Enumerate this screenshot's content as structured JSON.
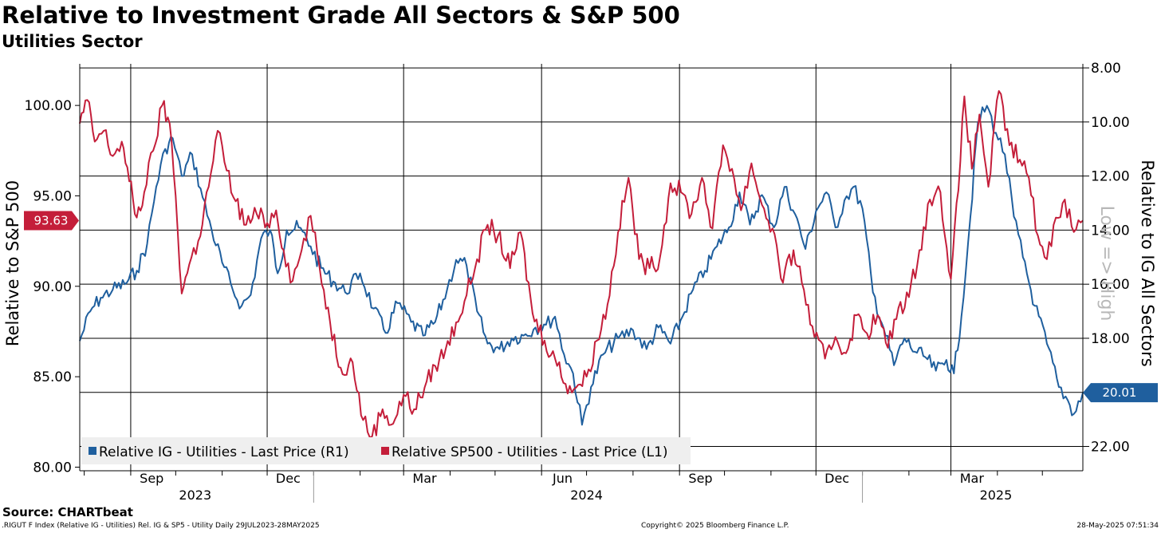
{
  "header": {
    "title": "Relative to Investment Grade All Sectors & S&P 500",
    "subtitle": "Utilities Sector"
  },
  "footer": {
    "source": "Source: CHARTbeat",
    "ticker_info": ".RIGUT F Index (Relative IG - Utilities) Rel. IG & SP5 - Utility  Daily 29JUL2023-28MAY2025",
    "copyright": "Copyright© 2025 Bloomberg Finance L.P.",
    "timestamp": "28-May-2025 07:51:34"
  },
  "chart_data": {
    "type": "line",
    "title": "Relative to Investment Grade All Sectors & S&P 500",
    "subtitle": "Utilities Sector",
    "x_range": [
      "2023-07-29",
      "2025-05-28"
    ],
    "x_ticks": [
      {
        "label": "Sep",
        "date": "2023-09-15"
      },
      {
        "label": "Dec",
        "date": "2023-12-15"
      },
      {
        "label": "Mar",
        "date": "2024-03-15"
      },
      {
        "label": "Jun",
        "date": "2024-06-15"
      },
      {
        "label": "Sep",
        "date": "2024-09-15"
      },
      {
        "label": "Dec",
        "date": "2024-12-15"
      },
      {
        "label": "Mar",
        "date": "2025-03-15"
      }
    ],
    "x_gridlines": [
      "2023-09-01",
      "2023-12-01",
      "2024-03-01",
      "2024-06-01",
      "2024-09-01",
      "2024-12-01",
      "2025-03-01"
    ],
    "year_labels": [
      {
        "label": "2023",
        "date": "2023-10-14"
      },
      {
        "label": "2024",
        "date": "2024-07-01"
      },
      {
        "label": "2025",
        "date": "2025-03-31"
      }
    ],
    "year_separators": [
      "2024-01-01",
      "2025-01-01"
    ],
    "left_axis": {
      "label": "Relative to S&P 500",
      "range": [
        79.8,
        102.3
      ],
      "ticks": [
        "80.00",
        "85.00",
        "90.00",
        "95.00",
        "100.00"
      ],
      "last_value_label": "93.63",
      "last_value": 93.63
    },
    "right_axis": {
      "label": "Relative to IG All Sectors",
      "inverted": true,
      "range": [
        7.85,
        22.9
      ],
      "ticks": [
        "8.00",
        "10.00",
        "12.00",
        "14.00",
        "16.00",
        "18.00",
        "20.00",
        "22.00"
      ],
      "last_value_label": "20.01",
      "last_value": 20.01,
      "watermark": "Low => High"
    },
    "legend": {
      "placement": "bottom-left",
      "entries": [
        "Relative IG - Utilities - Last Price (R1)",
        "Relative SP500 - Utilities - Last Price (L1)"
      ]
    },
    "colors": {
      "ig": "#1f5f9e",
      "sp500": "#c41e3a",
      "grid": "#000000"
    },
    "series": [
      {
        "name": "Relative IG - Utilities - Last Price (R1)",
        "axis": "right",
        "color": "#1f5f9e",
        "points": [
          [
            "2023-07-29",
            18.1
          ],
          [
            "2023-08-05",
            17.0
          ],
          [
            "2023-08-12",
            16.5
          ],
          [
            "2023-08-20",
            16.2
          ],
          [
            "2023-08-28",
            16.0
          ],
          [
            "2023-09-05",
            15.5
          ],
          [
            "2023-09-12",
            14.5
          ],
          [
            "2023-09-18",
            12.4
          ],
          [
            "2023-09-24",
            11.0
          ],
          [
            "2023-09-29",
            10.6
          ],
          [
            "2023-10-05",
            12.0
          ],
          [
            "2023-10-12",
            11.2
          ],
          [
            "2023-10-19",
            12.8
          ],
          [
            "2023-10-25",
            14.0
          ],
          [
            "2023-11-01",
            15.2
          ],
          [
            "2023-11-08",
            16.2
          ],
          [
            "2023-11-14",
            16.8
          ],
          [
            "2023-11-20",
            16.4
          ],
          [
            "2023-11-27",
            14.3
          ],
          [
            "2023-12-03",
            14.0
          ],
          [
            "2023-12-08",
            15.6
          ],
          [
            "2023-12-14",
            14.0
          ],
          [
            "2023-12-22",
            13.9
          ],
          [
            "2023-12-30",
            14.6
          ],
          [
            "2024-01-06",
            15.4
          ],
          [
            "2024-01-14",
            15.9
          ],
          [
            "2024-01-22",
            16.3
          ],
          [
            "2024-02-01",
            15.6
          ],
          [
            "2024-02-10",
            16.9
          ],
          [
            "2024-02-18",
            17.8
          ],
          [
            "2024-02-26",
            16.7
          ],
          [
            "2024-03-06",
            17.4
          ],
          [
            "2024-03-14",
            17.9
          ],
          [
            "2024-03-22",
            17.4
          ],
          [
            "2024-03-30",
            16.2
          ],
          [
            "2024-04-05",
            15.1
          ],
          [
            "2024-04-12",
            15.3
          ],
          [
            "2024-04-19",
            17.0
          ],
          [
            "2024-04-26",
            18.2
          ],
          [
            "2024-05-04",
            18.4
          ],
          [
            "2024-05-12",
            18.0
          ],
          [
            "2024-05-20",
            17.9
          ],
          [
            "2024-05-28",
            17.6
          ],
          [
            "2024-06-04",
            17.5
          ],
          [
            "2024-06-10",
            17.2
          ],
          [
            "2024-06-16",
            18.6
          ],
          [
            "2024-06-22",
            19.3
          ],
          [
            "2024-06-28",
            21.2
          ],
          [
            "2024-07-04",
            19.8
          ],
          [
            "2024-07-12",
            18.6
          ],
          [
            "2024-07-22",
            18.0
          ],
          [
            "2024-08-01",
            17.7
          ],
          [
            "2024-08-10",
            18.4
          ],
          [
            "2024-08-18",
            17.6
          ],
          [
            "2024-08-26",
            18.2
          ],
          [
            "2024-09-03",
            17.2
          ],
          [
            "2024-09-10",
            16.2
          ],
          [
            "2024-09-18",
            15.5
          ],
          [
            "2024-09-26",
            14.6
          ],
          [
            "2024-10-04",
            13.9
          ],
          [
            "2024-10-11",
            12.6
          ],
          [
            "2024-10-18",
            13.8
          ],
          [
            "2024-10-26",
            12.7
          ],
          [
            "2024-11-03",
            13.9
          ],
          [
            "2024-11-10",
            12.4
          ],
          [
            "2024-11-17",
            13.4
          ],
          [
            "2024-11-24",
            14.7
          ],
          [
            "2024-12-01",
            13.3
          ],
          [
            "2024-12-08",
            12.6
          ],
          [
            "2024-12-14",
            13.9
          ],
          [
            "2024-12-20",
            12.9
          ],
          [
            "2024-12-26",
            12.4
          ],
          [
            "2025-01-01",
            13.2
          ],
          [
            "2025-01-08",
            16.3
          ],
          [
            "2025-01-15",
            17.6
          ],
          [
            "2025-01-22",
            19.0
          ],
          [
            "2025-01-29",
            18.0
          ],
          [
            "2025-02-05",
            18.5
          ],
          [
            "2025-02-12",
            18.7
          ],
          [
            "2025-02-19",
            19.2
          ],
          [
            "2025-02-26",
            18.8
          ],
          [
            "2025-03-03",
            19.3
          ],
          [
            "2025-03-08",
            17.2
          ],
          [
            "2025-03-14",
            13.5
          ],
          [
            "2025-03-19",
            10.0
          ],
          [
            "2025-03-25",
            9.4
          ],
          [
            "2025-03-31",
            10.4
          ],
          [
            "2025-04-06",
            11.2
          ],
          [
            "2025-04-12",
            13.5
          ],
          [
            "2025-04-18",
            15.0
          ],
          [
            "2025-04-26",
            16.8
          ],
          [
            "2025-05-04",
            18.2
          ],
          [
            "2025-05-12",
            19.8
          ],
          [
            "2025-05-18",
            20.3
          ],
          [
            "2025-05-22",
            20.8
          ],
          [
            "2025-05-28",
            20.01
          ]
        ]
      },
      {
        "name": "Relative SP500 - Utilities - Last Price (L1)",
        "axis": "left",
        "color": "#c41e3a",
        "points": [
          [
            "2023-07-29",
            99.0
          ],
          [
            "2023-08-03",
            100.3
          ],
          [
            "2023-08-08",
            98.0
          ],
          [
            "2023-08-14",
            98.6
          ],
          [
            "2023-08-20",
            97.2
          ],
          [
            "2023-08-26",
            98.0
          ],
          [
            "2023-08-31",
            95.8
          ],
          [
            "2023-09-05",
            93.8
          ],
          [
            "2023-09-10",
            95.2
          ],
          [
            "2023-09-16",
            97.5
          ],
          [
            "2023-09-22",
            100.0
          ],
          [
            "2023-09-27",
            99.0
          ],
          [
            "2023-10-01",
            95.0
          ],
          [
            "2023-10-05",
            89.6
          ],
          [
            "2023-10-10",
            91.2
          ],
          [
            "2023-10-16",
            92.5
          ],
          [
            "2023-10-23",
            95.5
          ],
          [
            "2023-10-29",
            98.6
          ],
          [
            "2023-11-04",
            96.4
          ],
          [
            "2023-11-10",
            94.7
          ],
          [
            "2023-11-17",
            93.4
          ],
          [
            "2023-11-24",
            94.0
          ],
          [
            "2023-12-01",
            93.5
          ],
          [
            "2023-12-07",
            94.2
          ],
          [
            "2023-12-12",
            92.0
          ],
          [
            "2023-12-18",
            90.3
          ],
          [
            "2023-12-24",
            92.0
          ],
          [
            "2023-12-30",
            93.9
          ],
          [
            "2024-01-05",
            91.0
          ],
          [
            "2024-01-12",
            88.0
          ],
          [
            "2024-01-19",
            85.5
          ],
          [
            "2024-01-27",
            85.8
          ],
          [
            "2024-02-03",
            82.6
          ],
          [
            "2024-02-09",
            81.7
          ],
          [
            "2024-02-16",
            83.2
          ],
          [
            "2024-02-23",
            82.4
          ],
          [
            "2024-03-01",
            84.0
          ],
          [
            "2024-03-08",
            83.2
          ],
          [
            "2024-03-15",
            84.4
          ],
          [
            "2024-03-22",
            85.6
          ],
          [
            "2024-03-29",
            86.5
          ],
          [
            "2024-04-05",
            88.0
          ],
          [
            "2024-04-12",
            89.5
          ],
          [
            "2024-04-19",
            91.5
          ],
          [
            "2024-04-26",
            93.4
          ],
          [
            "2024-05-03",
            92.8
          ],
          [
            "2024-05-11",
            91.0
          ],
          [
            "2024-05-18",
            93.0
          ],
          [
            "2024-05-26",
            88.5
          ],
          [
            "2024-06-03",
            87.0
          ],
          [
            "2024-06-10",
            86.0
          ],
          [
            "2024-06-17",
            84.6
          ],
          [
            "2024-06-24",
            84.4
          ],
          [
            "2024-07-01",
            85.0
          ],
          [
            "2024-07-08",
            87.0
          ],
          [
            "2024-07-15",
            89.0
          ],
          [
            "2024-07-22",
            93.0
          ],
          [
            "2024-07-29",
            96.0
          ],
          [
            "2024-08-05",
            91.5
          ],
          [
            "2024-08-12",
            91.0
          ],
          [
            "2024-08-19",
            91.6
          ],
          [
            "2024-08-26",
            95.7
          ],
          [
            "2024-09-02",
            95.2
          ],
          [
            "2024-09-09",
            94.0
          ],
          [
            "2024-09-16",
            96.0
          ],
          [
            "2024-09-23",
            93.2
          ],
          [
            "2024-09-30",
            97.8
          ],
          [
            "2024-10-06",
            96.5
          ],
          [
            "2024-10-12",
            94.2
          ],
          [
            "2024-10-19",
            96.8
          ],
          [
            "2024-10-26",
            94.5
          ],
          [
            "2024-11-02",
            93.2
          ],
          [
            "2024-11-09",
            90.2
          ],
          [
            "2024-11-16",
            92.0
          ],
          [
            "2024-11-23",
            89.8
          ],
          [
            "2024-11-30",
            87.2
          ],
          [
            "2024-12-07",
            86.0
          ],
          [
            "2024-12-14",
            87.2
          ],
          [
            "2024-12-21",
            86.3
          ],
          [
            "2024-12-28",
            88.4
          ],
          [
            "2025-01-04",
            87.4
          ],
          [
            "2025-01-11",
            88.4
          ],
          [
            "2025-01-18",
            86.6
          ],
          [
            "2025-01-25",
            88.8
          ],
          [
            "2025-02-01",
            89.4
          ],
          [
            "2025-02-08",
            92.0
          ],
          [
            "2025-02-15",
            94.8
          ],
          [
            "2025-02-22",
            95.2
          ],
          [
            "2025-03-01",
            90.4
          ],
          [
            "2025-03-06",
            95.3
          ],
          [
            "2025-03-10",
            100.5
          ],
          [
            "2025-03-15",
            96.5
          ],
          [
            "2025-03-20",
            99.5
          ],
          [
            "2025-03-26",
            95.5
          ],
          [
            "2025-04-02",
            100.8
          ],
          [
            "2025-04-09",
            97.8
          ],
          [
            "2025-04-16",
            97.0
          ],
          [
            "2025-04-22",
            96.0
          ],
          [
            "2025-04-28",
            92.8
          ],
          [
            "2025-05-04",
            91.5
          ],
          [
            "2025-05-10",
            93.8
          ],
          [
            "2025-05-16",
            94.8
          ],
          [
            "2025-05-22",
            93.0
          ],
          [
            "2025-05-28",
            93.63
          ]
        ]
      }
    ]
  }
}
